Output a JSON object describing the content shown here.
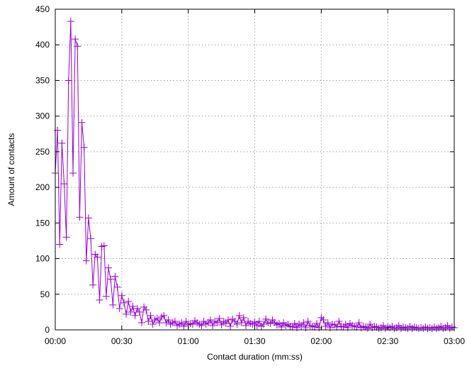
{
  "chart_data": {
    "type": "line",
    "xlabel": "Contact duration (mm:ss)",
    "ylabel": "Amount of contacts",
    "xlim": [
      0,
      180
    ],
    "ylim": [
      0,
      450
    ],
    "grid": true,
    "x_ticks": [
      {
        "value": 0,
        "label": "00:00"
      },
      {
        "value": 30,
        "label": "00:30"
      },
      {
        "value": 60,
        "label": "01:00"
      },
      {
        "value": 90,
        "label": "01:30"
      },
      {
        "value": 120,
        "label": "02:00"
      },
      {
        "value": 150,
        "label": "02:30"
      },
      {
        "value": 180,
        "label": "03:00"
      }
    ],
    "y_ticks": [
      {
        "value": 0,
        "label": "0"
      },
      {
        "value": 50,
        "label": "50"
      },
      {
        "value": 100,
        "label": "100"
      },
      {
        "value": 150,
        "label": "150"
      },
      {
        "value": 200,
        "label": "200"
      },
      {
        "value": 250,
        "label": "250"
      },
      {
        "value": 300,
        "label": "300"
      },
      {
        "value": 350,
        "label": "350"
      },
      {
        "value": 400,
        "label": "400"
      },
      {
        "value": 450,
        "label": "450"
      }
    ],
    "series": [
      {
        "color": "#9400d3",
        "marker": "plus",
        "x": [
          0,
          1,
          2,
          3,
          4,
          5,
          6,
          7,
          8,
          9,
          10,
          11,
          12,
          13,
          14,
          15,
          16,
          17,
          18,
          19,
          20,
          21,
          22,
          23,
          24,
          25,
          26,
          27,
          28,
          29,
          30,
          31,
          32,
          33,
          34,
          35,
          36,
          37,
          38,
          39,
          40,
          41,
          42,
          43,
          44,
          45,
          46,
          47,
          48,
          49,
          50,
          51,
          52,
          53,
          54,
          55,
          56,
          57,
          58,
          59,
          60,
          61,
          62,
          63,
          64,
          65,
          66,
          67,
          68,
          69,
          70,
          71,
          72,
          73,
          74,
          75,
          76,
          77,
          78,
          79,
          80,
          81,
          82,
          83,
          84,
          85,
          86,
          87,
          88,
          89,
          90,
          91,
          92,
          93,
          94,
          95,
          96,
          97,
          98,
          99,
          100,
          101,
          102,
          103,
          104,
          105,
          106,
          107,
          108,
          109,
          110,
          111,
          112,
          113,
          114,
          115,
          116,
          117,
          118,
          119,
          120,
          121,
          122,
          123,
          124,
          125,
          126,
          127,
          128,
          129,
          130,
          131,
          132,
          133,
          134,
          135,
          136,
          137,
          138,
          139,
          140,
          141,
          142,
          143,
          144,
          145,
          146,
          147,
          148,
          149,
          150,
          151,
          152,
          153,
          154,
          155,
          156,
          157,
          158,
          159,
          160,
          161,
          162,
          163,
          164,
          165,
          166,
          167,
          168,
          169,
          170,
          171,
          172,
          173,
          174,
          175,
          176,
          177,
          178,
          179,
          180
        ],
        "y": [
          220,
          280,
          120,
          262,
          205,
          130,
          350,
          433,
          220,
          408,
          398,
          158,
          291,
          256,
          97,
          157,
          128,
          63,
          106,
          102,
          42,
          117,
          118,
          47,
          87,
          71,
          35,
          75,
          60,
          30,
          48,
          38,
          22,
          40,
          25,
          33,
          20,
          30,
          25,
          10,
          32,
          28,
          12,
          20,
          8,
          14,
          16,
          10,
          18,
          20,
          10,
          14,
          8,
          10,
          12,
          6,
          8,
          10,
          5,
          12,
          7,
          9,
          8,
          13,
          10,
          8,
          6,
          12,
          8,
          10,
          14,
          6,
          12,
          10,
          16,
          7,
          12,
          9,
          14,
          5,
          15,
          12,
          8,
          20,
          10,
          17,
          6,
          12,
          9,
          8,
          11,
          6,
          12,
          5,
          8,
          15,
          10,
          9,
          14,
          10,
          7,
          9,
          4,
          10,
          6,
          8,
          5,
          4,
          9,
          3,
          8,
          5,
          10,
          3,
          12,
          6,
          5,
          4,
          9,
          3,
          17,
          14,
          5,
          10,
          3,
          8,
          7,
          4,
          12,
          5,
          4,
          8,
          3,
          9,
          6,
          5,
          4,
          10,
          3,
          5,
          4,
          2,
          8,
          3,
          5,
          4,
          2,
          3,
          6,
          2,
          4,
          3,
          5,
          2,
          3,
          6,
          2,
          4,
          3,
          2,
          5,
          2,
          4,
          3,
          2,
          3,
          2,
          4,
          2,
          3,
          2,
          4,
          2,
          3,
          5,
          2,
          3,
          6,
          2,
          4,
          3
        ]
      }
    ]
  }
}
